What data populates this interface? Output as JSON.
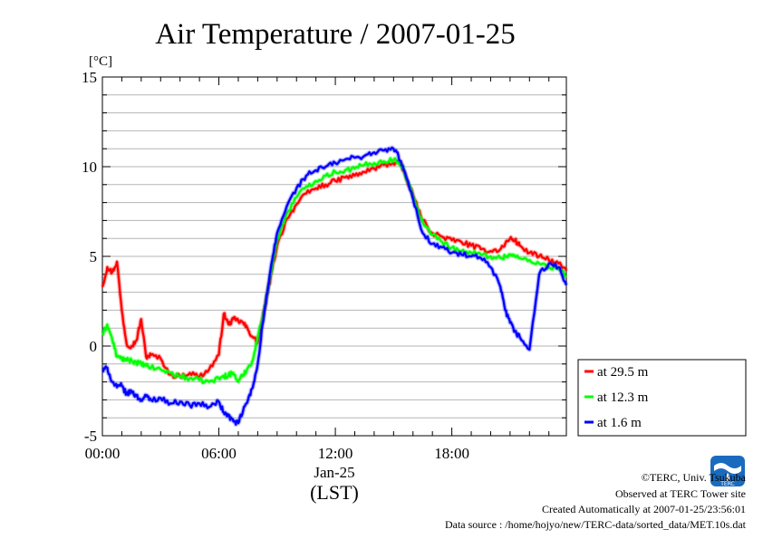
{
  "chart_data": {
    "type": "line",
    "title": "Air Temperature / 2007-01-25",
    "ylabel": "[°C]",
    "xlabel": "(LST)",
    "date_label": "Jan-25",
    "x_unit": "hour",
    "xlim": [
      0,
      23.9
    ],
    "ylim": [
      -5,
      15
    ],
    "y_ticks": [
      -5,
      0,
      5,
      10,
      15
    ],
    "x_ticks": [
      {
        "value": 0,
        "label": "00:00"
      },
      {
        "value": 6,
        "label": "06:00"
      },
      {
        "value": 12,
        "label": "12:00"
      },
      {
        "value": 18,
        "label": "18:00"
      }
    ],
    "grid": true,
    "legend_position": "right",
    "x": [
      0,
      0.25,
      0.5,
      0.75,
      1,
      1.25,
      1.5,
      1.75,
      2,
      2.25,
      2.5,
      3,
      3.5,
      4,
      4.5,
      5,
      5.5,
      6,
      6.25,
      6.5,
      6.75,
      7,
      7.25,
      7.5,
      7.75,
      8,
      8.25,
      8.5,
      8.75,
      9,
      9.5,
      10,
      10.5,
      11,
      11.5,
      12,
      12.5,
      13,
      13.5,
      14,
      14.5,
      15,
      15.25,
      15.5,
      16,
      16.5,
      17,
      17.5,
      18,
      18.5,
      19,
      19.5,
      20,
      20.5,
      20.75,
      21,
      21.25,
      21.5,
      22,
      22.5,
      23,
      23.5,
      23.9
    ],
    "series": [
      {
        "name": "at 29.5 m",
        "color": "#ff0000",
        "values": [
          3.3,
          4.4,
          4.1,
          4.7,
          2.0,
          0.1,
          0.0,
          0.3,
          1.5,
          -0.6,
          -0.5,
          -0.7,
          -1.6,
          -1.7,
          -1.5,
          -1.7,
          -1.3,
          -0.5,
          1.8,
          1.2,
          1.5,
          1.4,
          1.3,
          0.9,
          0.5,
          0.2,
          1.5,
          2.9,
          4.3,
          5.6,
          7.1,
          7.9,
          8.5,
          8.8,
          9.0,
          9.2,
          9.4,
          9.5,
          9.7,
          9.9,
          10.1,
          10.2,
          10.3,
          9.8,
          8.4,
          7.0,
          6.3,
          6.1,
          5.9,
          5.8,
          5.6,
          5.4,
          5.3,
          5.4,
          5.7,
          6.0,
          5.9,
          5.6,
          5.2,
          5.0,
          4.8,
          4.6,
          4.2
        ]
      },
      {
        "name": "at 12.3 m",
        "color": "#00ff00",
        "values": [
          0.6,
          1.2,
          0.4,
          -0.6,
          -0.7,
          -0.8,
          -0.8,
          -0.9,
          -1.0,
          -1.1,
          -1.2,
          -1.3,
          -1.5,
          -1.7,
          -1.8,
          -1.9,
          -2.0,
          -1.8,
          -1.7,
          -1.6,
          -1.5,
          -2.0,
          -1.6,
          -1.2,
          -0.8,
          0.5,
          1.6,
          3.0,
          4.5,
          5.9,
          7.4,
          8.3,
          8.9,
          9.2,
          9.5,
          9.7,
          9.8,
          9.9,
          10.1,
          10.2,
          10.3,
          10.4,
          10.3,
          9.9,
          8.3,
          6.9,
          6.2,
          5.8,
          5.5,
          5.3,
          5.2,
          5.1,
          5.0,
          4.9,
          5.0,
          5.1,
          5.0,
          4.9,
          4.8,
          4.6,
          4.4,
          4.3,
          3.9
        ]
      },
      {
        "name": "at 1.6 m",
        "color": "#0000ff",
        "values": [
          -1.4,
          -1.2,
          -2.0,
          -2.3,
          -2.2,
          -2.7,
          -2.5,
          -2.8,
          -3.0,
          -2.8,
          -3.0,
          -2.9,
          -3.2,
          -3.1,
          -3.3,
          -3.2,
          -3.4,
          -3.1,
          -3.7,
          -3.9,
          -4.2,
          -4.3,
          -3.6,
          -3.0,
          -2.3,
          -1.0,
          1.2,
          3.0,
          4.8,
          6.3,
          7.8,
          8.8,
          9.5,
          9.8,
          10.0,
          10.2,
          10.4,
          10.5,
          10.6,
          10.8,
          10.9,
          11.0,
          10.6,
          9.9,
          8.2,
          6.3,
          5.7,
          5.5,
          5.2,
          5.1,
          5.0,
          4.9,
          4.4,
          3.3,
          2.0,
          1.3,
          0.8,
          0.5,
          -0.2,
          4.0,
          4.6,
          4.4,
          3.4
        ]
      }
    ]
  },
  "footer": {
    "copyright": "©TERC, Univ. Tsukuba",
    "site": "Observed at TERC Tower site",
    "created": "Created Automatically at 2007-01-25/23:56:01",
    "source": "Data source : /home/hojyo/new/TERC-data/sorted_data/MET.10s.dat"
  },
  "logo": {
    "text": "TERC",
    "color": "#1a6bbf"
  }
}
